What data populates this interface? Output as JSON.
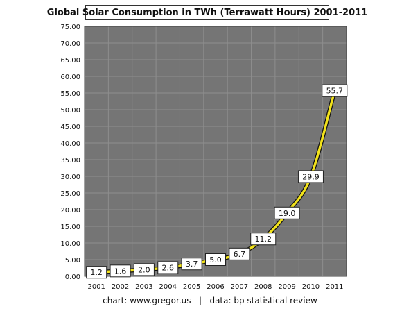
{
  "chart_data": {
    "type": "line",
    "title": "Global Solar Consumption in TWh (Terrawatt Hours) 2001-2011",
    "xlabel": "",
    "ylabel": "",
    "categories": [
      "2001",
      "2002",
      "2003",
      "2004",
      "2005",
      "2006",
      "2007",
      "2008",
      "2009",
      "2010",
      "2011"
    ],
    "series": [
      {
        "values": [
          1.2,
          1.6,
          2.0,
          2.6,
          3.7,
          5.0,
          6.7,
          11.2,
          19.0,
          29.9,
          55.7
        ]
      }
    ],
    "data_labels": [
      "1.2",
      "1.6",
      "2.0",
      "2.6",
      "3.7",
      "5.0",
      "6.7",
      "11.2",
      "19.0",
      "29.9",
      "55.7"
    ],
    "ylim": [
      0,
      75
    ],
    "yticks": [
      "0.00",
      "5.00",
      "10.00",
      "15.00",
      "20.00",
      "25.00",
      "30.00",
      "35.00",
      "40.00",
      "45.00",
      "50.00",
      "55.00",
      "60.00",
      "65.00",
      "70.00",
      "75.00"
    ],
    "grid": true,
    "legend": "none",
    "colors": {
      "plot_bg": "#757575",
      "grid": "#8e8e8e",
      "line": "#f2e21b",
      "line_outline": "#111111"
    }
  },
  "footer": {
    "credit": "chart: www.gregor.us",
    "separator": "|",
    "source": "data: bp statistical review"
  }
}
